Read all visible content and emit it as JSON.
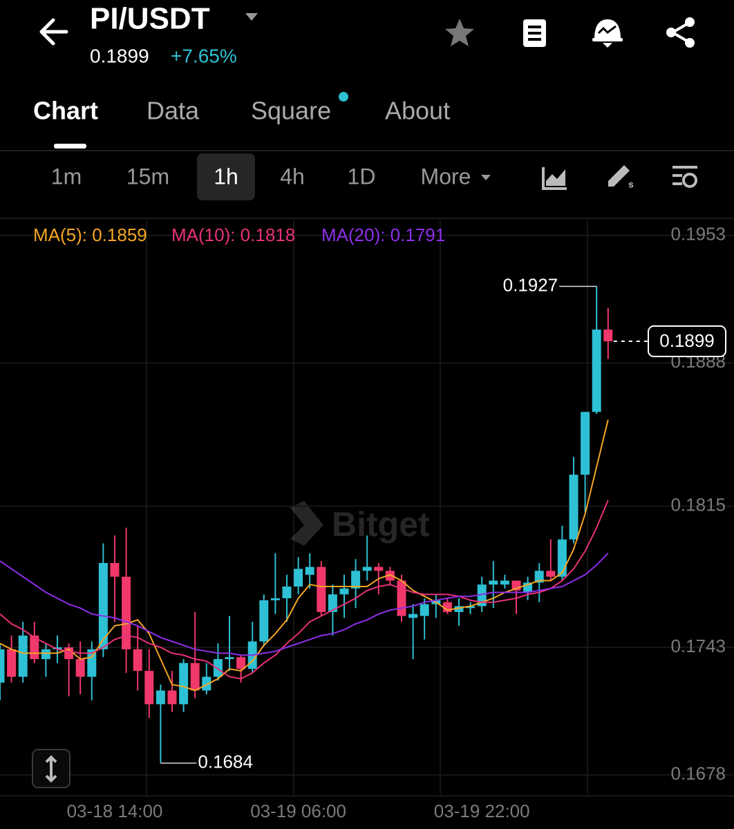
{
  "header": {
    "pair": "PI/USDT",
    "last_price": "0.1899",
    "change": "+7.65%"
  },
  "tabs": [
    "Chart",
    "Data",
    "Square",
    "About"
  ],
  "intervals": [
    "1m",
    "15m",
    "1h",
    "4h",
    "1D",
    "More"
  ],
  "watermark": "Bitget",
  "chart_data": {
    "type": "candlestick",
    "categories": [
      null,
      null,
      null,
      null,
      null,
      null,
      null,
      null,
      null,
      null,
      "03-18 14:00",
      null,
      null,
      null,
      null,
      null,
      null,
      null,
      null,
      null,
      null,
      null,
      null,
      null,
      null,
      null,
      "03-19 06:00",
      null,
      null,
      null,
      null,
      null,
      null,
      null,
      null,
      null,
      null,
      null,
      null,
      null,
      null,
      null,
      "03-19 22:00",
      null,
      null,
      null,
      null,
      null,
      null,
      null,
      null,
      null,
      null,
      null
    ],
    "open": [
      0.1725,
      0.1742,
      0.1728,
      0.1749,
      0.1737,
      0.1742,
      0.1743,
      0.1737,
      0.1728,
      0.1742,
      0.1786,
      0.1779,
      0.1742,
      0.1731,
      0.1714,
      0.1721,
      0.1714,
      0.1735,
      0.1721,
      0.1728,
      0.1737,
      0.1738,
      0.1732,
      0.1746,
      0.1767,
      0.1768,
      0.1774,
      0.178,
      0.1784,
      0.1761,
      0.177,
      0.1773,
      0.1782,
      0.1784,
      0.1782,
      0.1777,
      0.1758,
      0.1759,
      0.1765,
      0.1766,
      0.1761,
      0.1763,
      0.1764,
      0.1775,
      0.1775,
      0.1777,
      0.1771,
      0.1776,
      0.1782,
      0.1779,
      0.1798,
      0.1831,
      0.1863,
      0.1905
    ],
    "high": [
      0.1745,
      0.1749,
      0.1756,
      0.1756,
      0.1745,
      0.1749,
      0.1745,
      0.1746,
      0.1746,
      0.1796,
      0.18,
      0.1804,
      0.1754,
      0.1742,
      0.1724,
      0.1731,
      0.1737,
      0.1761,
      0.1735,
      0.1745,
      0.1759,
      0.1739,
      0.1756,
      0.177,
      0.1791,
      0.178,
      0.1789,
      0.1791,
      0.1787,
      0.1775,
      0.178,
      0.1788,
      0.18,
      0.1786,
      0.1784,
      0.178,
      0.1765,
      0.1768,
      0.177,
      0.1768,
      0.1768,
      0.1766,
      0.1779,
      0.1787,
      0.178,
      0.1777,
      0.1779,
      0.1786,
      0.1798,
      0.1805,
      0.184,
      0.1863,
      0.1927,
      0.1916
    ],
    "low": [
      0.1716,
      0.1725,
      0.1725,
      0.1735,
      0.1728,
      0.1735,
      0.1718,
      0.1719,
      0.1716,
      0.1738,
      0.1756,
      0.173,
      0.1721,
      0.1707,
      0.1684,
      0.171,
      0.171,
      0.1717,
      0.1719,
      0.1726,
      0.1731,
      0.1725,
      0.173,
      0.1744,
      0.176,
      0.1756,
      0.177,
      0.1773,
      0.1759,
      0.1749,
      0.1758,
      0.1763,
      0.1777,
      0.177,
      0.1775,
      0.1756,
      0.1737,
      0.1747,
      0.1758,
      0.176,
      0.1754,
      0.176,
      0.1761,
      0.1763,
      0.1773,
      0.176,
      0.1767,
      0.1766,
      0.1777,
      0.1777,
      0.1796,
      0.1812,
      0.1862,
      0.189
    ],
    "close": [
      0.1742,
      0.1728,
      0.1749,
      0.1737,
      0.1742,
      0.1743,
      0.1737,
      0.1728,
      0.1742,
      0.1786,
      0.1779,
      0.1742,
      0.1731,
      0.1714,
      0.1721,
      0.1714,
      0.1735,
      0.1721,
      0.1728,
      0.1737,
      0.1738,
      0.1732,
      0.1746,
      0.1767,
      0.1768,
      0.1774,
      0.1783,
      0.1784,
      0.1761,
      0.177,
      0.1773,
      0.1782,
      0.1784,
      0.1782,
      0.1777,
      0.1759,
      0.176,
      0.1765,
      0.1767,
      0.1761,
      0.1764,
      0.1764,
      0.1775,
      0.1777,
      0.1777,
      0.1772,
      0.1776,
      0.1782,
      0.1779,
      0.1798,
      0.1831,
      0.1863,
      0.1905,
      0.1899
    ],
    "up_color": "#2ec0d4",
    "down_color": "#f0386b",
    "series": [
      {
        "name": "MA(5): 0.1859",
        "color": "#f5a623",
        "values": [
          0.1745,
          0.1742,
          0.174,
          0.174,
          0.174,
          0.174,
          0.1742,
          0.1737,
          0.1738,
          0.1747,
          0.1754,
          0.1755,
          0.1757,
          0.175,
          0.1737,
          0.1724,
          0.1723,
          0.1721,
          0.1724,
          0.1727,
          0.1732,
          0.1731,
          0.1736,
          0.1744,
          0.175,
          0.1757,
          0.1768,
          0.1775,
          0.1774,
          0.1774,
          0.1774,
          0.1774,
          0.1774,
          0.1778,
          0.178,
          0.1777,
          0.1772,
          0.1769,
          0.1766,
          0.1762,
          0.1763,
          0.1764,
          0.1766,
          0.1768,
          0.1771,
          0.1773,
          0.1775,
          0.1777,
          0.1777,
          0.1781,
          0.1793,
          0.1811,
          0.1835,
          0.1859
        ]
      },
      {
        "name": "MA(10): 0.1818",
        "color": "#e8317a",
        "values": [
          0.176,
          0.1755,
          0.1752,
          0.1748,
          0.1745,
          0.1742,
          0.1741,
          0.174,
          0.174,
          0.1743,
          0.1747,
          0.1749,
          0.1748,
          0.1745,
          0.1743,
          0.174,
          0.1739,
          0.1737,
          0.1736,
          0.1732,
          0.1728,
          0.1727,
          0.173,
          0.1735,
          0.1739,
          0.1745,
          0.175,
          0.1756,
          0.1759,
          0.1762,
          0.1765,
          0.1768,
          0.1772,
          0.1774,
          0.1775,
          0.1773,
          0.1771,
          0.177,
          0.177,
          0.177,
          0.1769,
          0.1767,
          0.1766,
          0.1766,
          0.1767,
          0.1768,
          0.177,
          0.1771,
          0.1773,
          0.1777,
          0.1783,
          0.1792,
          0.1804,
          0.1818
        ]
      },
      {
        "name": "MA(20): 0.1791",
        "color": "#8e2fe8",
        "values": [
          0.1787,
          0.1783,
          0.1779,
          0.1775,
          0.1771,
          0.1768,
          0.1765,
          0.1763,
          0.176,
          0.1759,
          0.1758,
          0.1756,
          0.1754,
          0.1751,
          0.1748,
          0.1746,
          0.1744,
          0.1742,
          0.1741,
          0.174,
          0.174,
          0.1739,
          0.1739,
          0.174,
          0.1741,
          0.1743,
          0.1745,
          0.1747,
          0.1749,
          0.175,
          0.1752,
          0.1755,
          0.1757,
          0.176,
          0.1762,
          0.1763,
          0.1764,
          0.1766,
          0.1767,
          0.1768,
          0.1769,
          0.1769,
          0.177,
          0.1771,
          0.1771,
          0.1771,
          0.1771,
          0.1772,
          0.1773,
          0.1774,
          0.1777,
          0.178,
          0.1785,
          0.1791
        ]
      }
    ],
    "ylim": [
      0.1668,
      0.1961
    ],
    "yticks": [
      0.1678,
      0.1743,
      0.1815,
      0.1888,
      0.1953
    ],
    "grid": true
  }
}
